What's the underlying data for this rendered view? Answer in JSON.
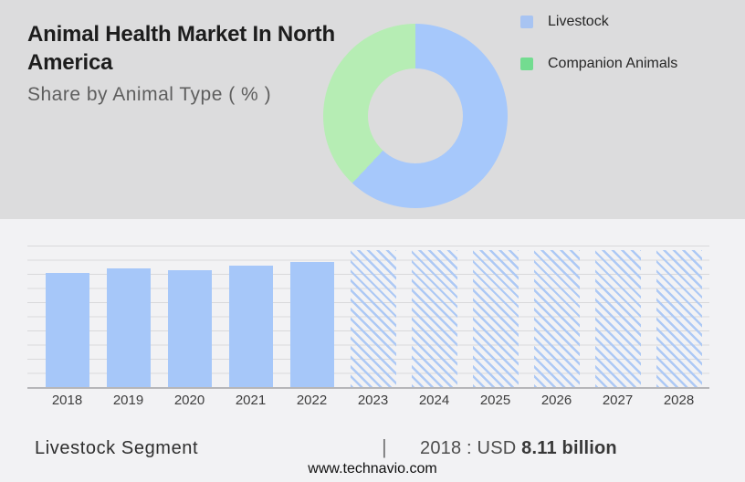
{
  "header": {
    "title": "Animal Health Market In North America",
    "subtitle": "Share by Animal Type ( % )"
  },
  "donut": {
    "legend": [
      {
        "label": "Livestock",
        "color": "#a8c4f2"
      },
      {
        "label": "Companion Animals",
        "color": "#73dc90"
      }
    ]
  },
  "chart_data": [
    {
      "type": "pie",
      "subtype": "donut",
      "title": "Share by Animal Type ( % )",
      "labels": [
        "Livestock",
        "Companion Animals"
      ],
      "values": [
        62,
        38
      ],
      "unit": "%",
      "colors": [
        "#a6c8fb",
        "#b6edb4"
      ],
      "legend_position": "right",
      "start_angle_deg": 0,
      "note": "no numeric labels shown; shares estimated from arc angles (blue ~224deg)"
    },
    {
      "type": "bar",
      "title": "Livestock Segment market size by year",
      "categories": [
        "2018",
        "2019",
        "2020",
        "2021",
        "2022",
        "2023",
        "2024",
        "2025",
        "2026",
        "2027",
        "2028"
      ],
      "values": [
        8.11,
        8.43,
        8.3,
        8.63,
        8.89,
        9.73,
        9.73,
        9.73,
        9.73,
        9.73,
        9.73
      ],
      "unit": "USD billion",
      "anchor_label": "2018 : USD 8.11 billion",
      "solid_years": [
        "2018",
        "2019",
        "2020",
        "2021",
        "2022"
      ],
      "hatched_years": [
        "2023",
        "2024",
        "2025",
        "2026",
        "2027",
        "2028"
      ],
      "bar_color": "#a6c7f9",
      "hatch_color": "#adc9f5",
      "ylim": [
        0,
        10.05
      ],
      "grid": true,
      "xlabel": "",
      "ylabel": "",
      "note": "only the 2018 value is labeled; remaining values estimated from bar heights; 2023-2028 are uniform-height hatched forecast bars"
    }
  ],
  "footer": {
    "segment_label": "Livestock Segment",
    "separator": "|",
    "value_prefix": "2018 : USD",
    "value_bold": "8.11 billion",
    "website": "www.technavio.com"
  }
}
